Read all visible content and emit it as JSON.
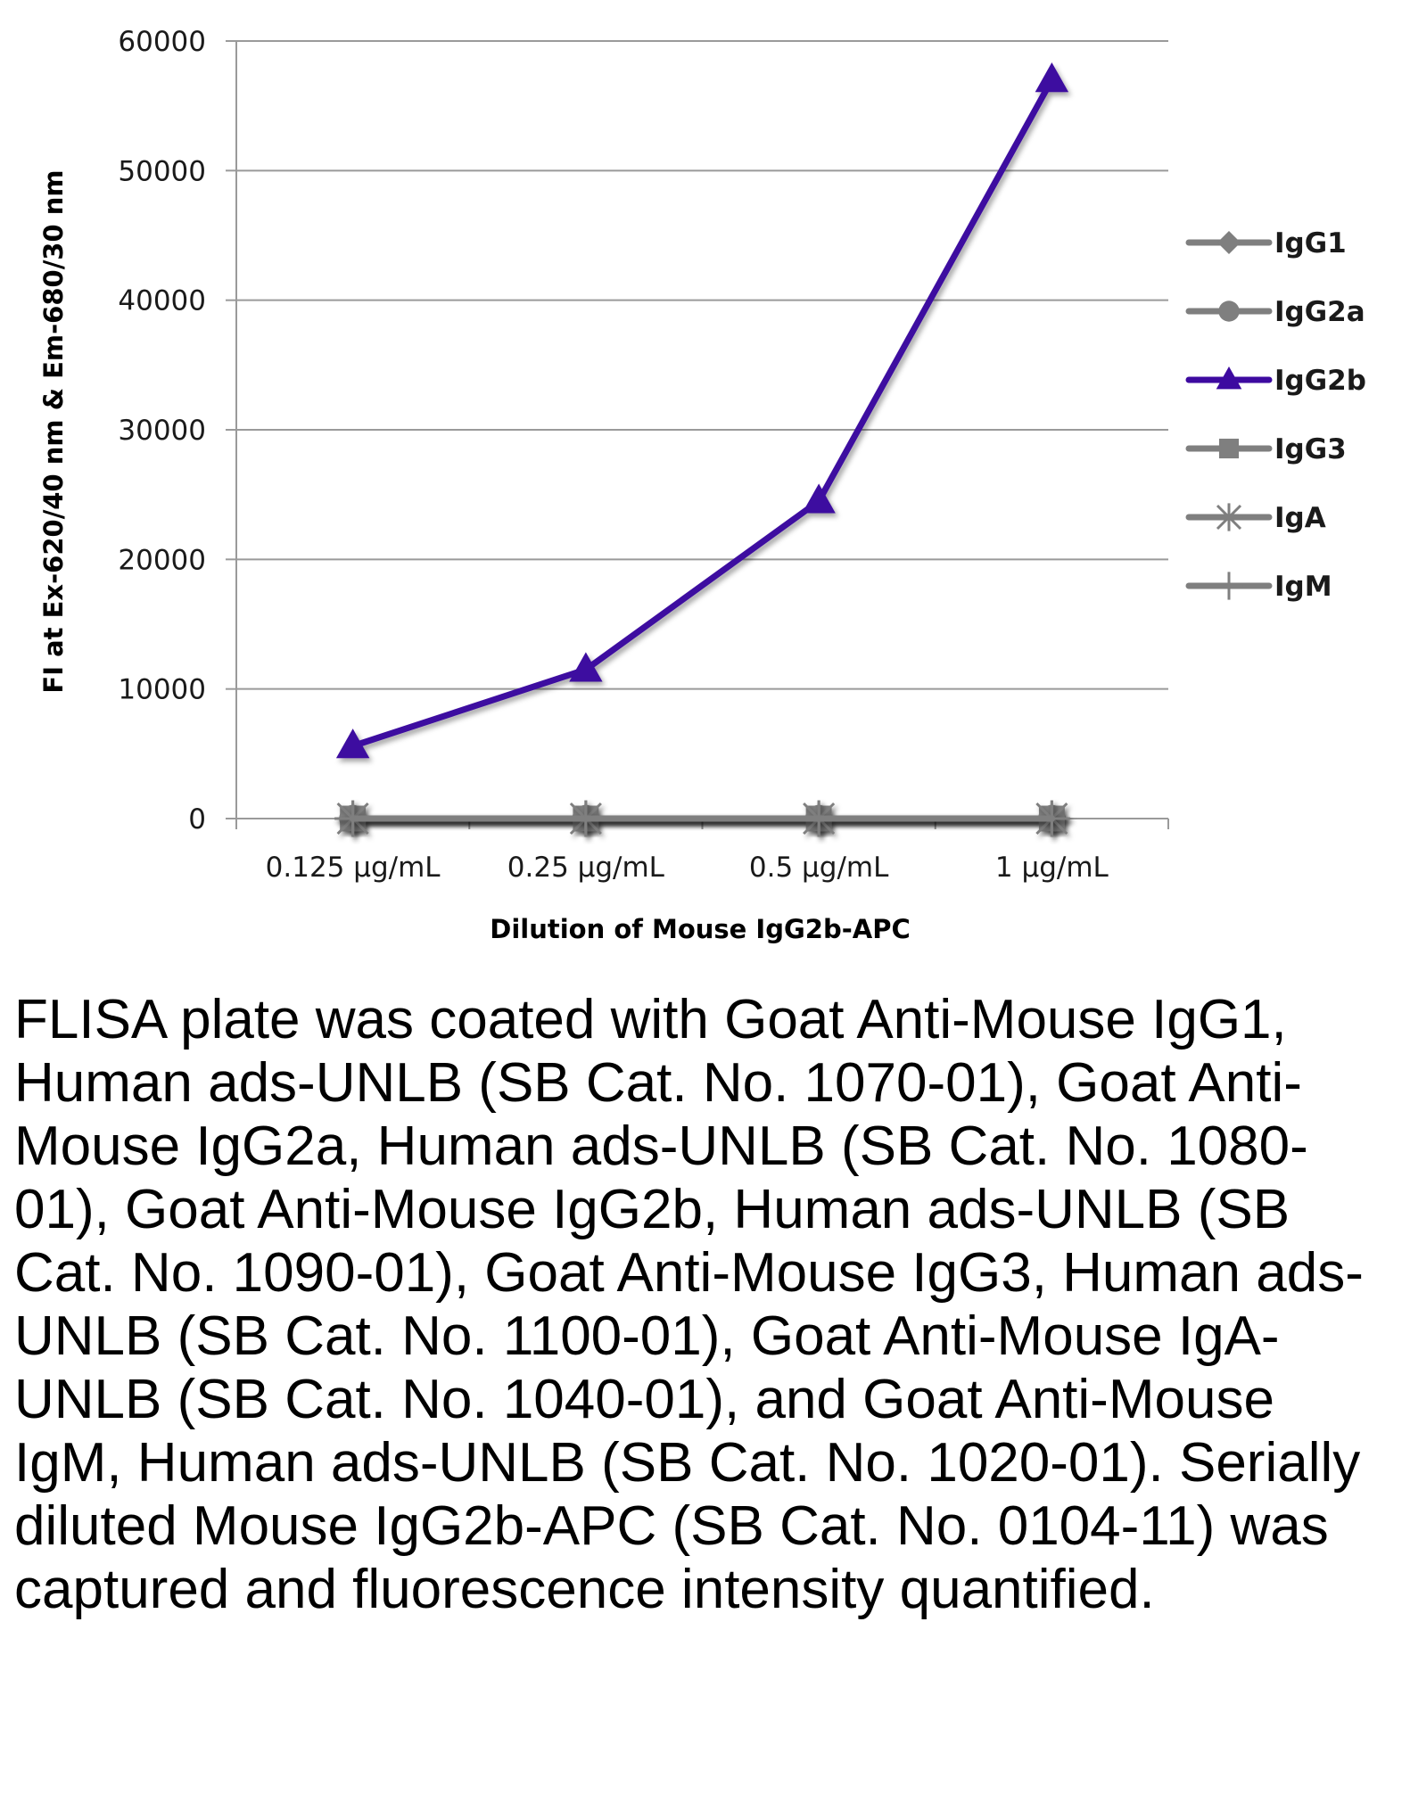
{
  "chart_data": {
    "type": "line",
    "title": "",
    "xlabel": "Dilution of Mouse IgG2b-APC",
    "ylabel": "FI at Ex-620/40 nm & Em-680/30 nm",
    "categories": [
      "0.125 µg/mL",
      "0.25 µg/mL",
      "0.5 µg/mL",
      "1 µg/mL"
    ],
    "ylim": [
      0,
      60000
    ],
    "yticks": [
      0,
      10000,
      20000,
      30000,
      40000,
      50000,
      60000
    ],
    "grid": "horizontal",
    "legend_position": "right",
    "series": [
      {
        "name": "IgG1",
        "marker": "diamond",
        "color": "#7f7f7f",
        "values": [
          0,
          0,
          0,
          0
        ]
      },
      {
        "name": "IgG2a",
        "marker": "circle",
        "color": "#7f7f7f",
        "values": [
          0,
          0,
          0,
          0
        ]
      },
      {
        "name": "IgG2b",
        "marker": "triangle",
        "color": "#3d0aa0",
        "values": [
          5600,
          11500,
          24500,
          57000
        ]
      },
      {
        "name": "IgG3",
        "marker": "square",
        "color": "#7f7f7f",
        "values": [
          0,
          0,
          0,
          0
        ]
      },
      {
        "name": "IgA",
        "marker": "star",
        "color": "#7f7f7f",
        "values": [
          0,
          0,
          0,
          0
        ]
      },
      {
        "name": "IgM",
        "marker": "plus",
        "color": "#7f7f7f",
        "values": [
          0,
          0,
          0,
          0
        ]
      }
    ]
  },
  "caption": "FLISA plate was coated with Goat Anti-Mouse IgG1, Human ads-UNLB (SB Cat. No. 1070-01), Goat Anti-Mouse IgG2a, Human ads-UNLB (SB Cat. No. 1080-01), Goat Anti-Mouse IgG2b, Human ads-UNLB (SB Cat. No. 1090-01), Goat Anti-Mouse IgG3, Human ads-UNLB (SB Cat. No. 1100-01), Goat Anti-Mouse IgA-UNLB (SB Cat. No. 1040-01), and Goat Anti-Mouse IgM, Human ads-UNLB (SB Cat. No. 1020-01).  Serially diluted Mouse IgG2b-APC (SB Cat. No. 0104-11) was captured and fluorescence intensity quantified."
}
